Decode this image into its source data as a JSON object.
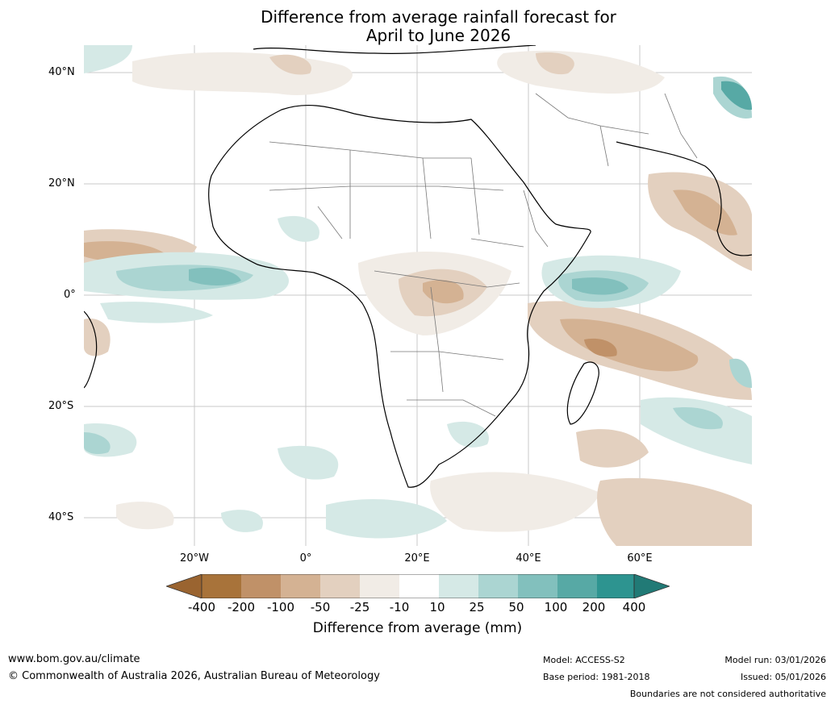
{
  "title": {
    "line1": "Difference from average rainfall forecast for",
    "line2": "April to June 2026"
  },
  "map": {
    "lat_labels": [
      "40°N",
      "20°N",
      "0°",
      "20°S",
      "40°S"
    ],
    "lon_labels": [
      "20°W",
      "0°",
      "20°E",
      "40°E",
      "60°E"
    ]
  },
  "colorbar": {
    "ticks": [
      "-400",
      "-200",
      "-100",
      "-50",
      "-25",
      "-10",
      "10",
      "25",
      "50",
      "100",
      "200",
      "400"
    ],
    "colors": [
      "#a8733a",
      "#c09168",
      "#d4b293",
      "#e3d0bf",
      "#f1ece6",
      "#ffffff",
      "#d5e9e6",
      "#abd5d2",
      "#82c0bd",
      "#57a9a5",
      "#2d9490"
    ],
    "label": "Difference from average (mm)"
  },
  "footer": {
    "website": "www.bom.gov.au/climate",
    "copyright": "© Commonwealth of Australia 2026, Australian Bureau of Meteorology",
    "model": "Model: ACCESS-S2",
    "base_period": "Base period: 1981-2018",
    "model_run": "Model run: 03/01/2026",
    "issued": "Issued: 05/01/2026",
    "disclaimer": "Boundaries are not considered authoritative"
  }
}
